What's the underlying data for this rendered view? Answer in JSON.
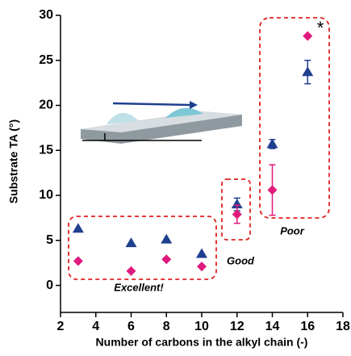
{
  "chart_data": {
    "type": "scatter",
    "x_label": "Number of carbons in the alkyl chain (-)",
    "y_label": "Substrate TA (°)",
    "xlim": [
      2,
      18
    ],
    "xticks": [
      2,
      4,
      6,
      8,
      10,
      12,
      14,
      16,
      18
    ],
    "ylim": [
      -3,
      30
    ],
    "yticks": [
      0,
      5,
      10,
      15,
      20,
      25,
      30
    ],
    "grid": false,
    "series": [
      {
        "marker": "triangle",
        "color": "#1f3f8f",
        "x": [
          3,
          6,
          8,
          10,
          12,
          14,
          16
        ],
        "values": [
          6.3,
          4.7,
          5.1,
          3.5,
          9.0,
          15.7,
          23.7
        ],
        "errors": [
          null,
          null,
          null,
          null,
          0.7,
          0.5,
          1.3
        ]
      },
      {
        "marker": "diamond",
        "color": "#e0197d",
        "x": [
          3,
          6,
          8,
          10,
          12,
          14,
          16
        ],
        "values": [
          2.7,
          1.6,
          2.9,
          2.1,
          7.9,
          10.6,
          27.7
        ],
        "errors": [
          null,
          null,
          null,
          null,
          1.0,
          2.8,
          null
        ]
      }
    ],
    "annotations": [
      "Excellent!",
      "Good",
      "Poor",
      "*"
    ]
  }
}
